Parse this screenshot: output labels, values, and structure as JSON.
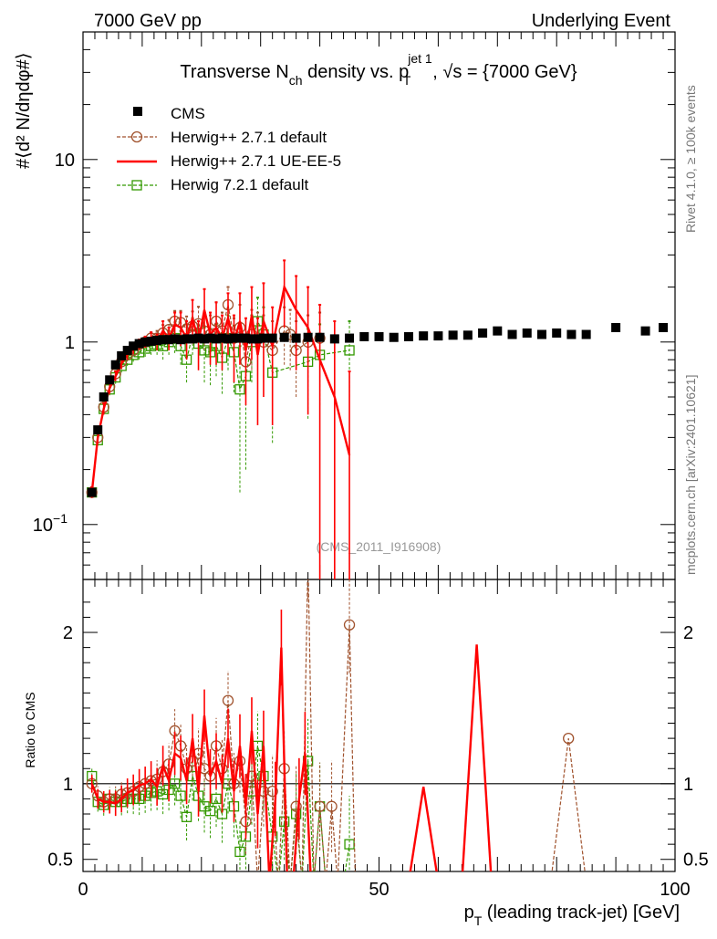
{
  "header": {
    "left": "7000 GeV pp",
    "right": "Underlying Event"
  },
  "side_labels": {
    "rivet": "Rivet 4.1.0, ≥ 100k events",
    "mcplots": "mcplots.cern.ch [arXiv:2401.10621]"
  },
  "analysis_label": "(CMS_2011_I916908)",
  "colors": {
    "cms": "#000000",
    "herwig271_default": "#a0522d",
    "herwig271_ueee5": "#ff0000",
    "herwig721": "#339900"
  },
  "chart_data": [
    {
      "type": "scatter",
      "panel": "main",
      "title": {
        "pre": "Transverse N",
        "sub1": "ch",
        "mid": " density vs. p",
        "sup2": "jet 1",
        "sub2": "T",
        "post": ", √s = {7000 GeV}"
      },
      "ylabel": "#⟨d² N/dηdφ#⟩",
      "yscale": "log",
      "ylim": [
        0.05,
        50
      ],
      "xlim": [
        0,
        100
      ],
      "yticks": [
        {
          "value": 0.1,
          "base": "10",
          "exp": "−1"
        },
        {
          "value": 1,
          "label": "1"
        },
        {
          "value": 10,
          "label": "10"
        }
      ],
      "series": [
        {
          "name": "CMS",
          "style": "marker-square-filled",
          "x": [
            1.5,
            2.5,
            3.5,
            4.5,
            5.5,
            6.5,
            7.5,
            8.5,
            9.5,
            10.5,
            11.5,
            12.5,
            13.5,
            14.5,
            15.5,
            16.5,
            17.5,
            18.5,
            19.5,
            20.5,
            21.5,
            22.5,
            23.5,
            24.5,
            25.5,
            26.5,
            27.5,
            28.5,
            29.5,
            30.5,
            32,
            34,
            36,
            38,
            40,
            42.5,
            45,
            47.5,
            50,
            52.5,
            55,
            57.5,
            60,
            62.5,
            65,
            67.5,
            70,
            72.5,
            75,
            77.5,
            80,
            82.5,
            85,
            90,
            95,
            98
          ],
          "y": [
            0.15,
            0.33,
            0.5,
            0.62,
            0.75,
            0.84,
            0.9,
            0.95,
            0.98,
            1.0,
            1.01,
            1.02,
            1.03,
            1.03,
            1.04,
            1.03,
            1.04,
            1.04,
            1.05,
            1.04,
            1.05,
            1.04,
            1.05,
            1.04,
            1.05,
            1.05,
            1.05,
            1.04,
            1.04,
            1.05,
            1.05,
            1.06,
            1.05,
            1.06,
            1.06,
            1.04,
            1.05,
            1.07,
            1.07,
            1.06,
            1.07,
            1.08,
            1.08,
            1.09,
            1.09,
            1.12,
            1.15,
            1.1,
            1.12,
            1.1,
            1.12,
            1.1,
            1.1,
            1.2,
            1.15,
            1.2
          ]
        },
        {
          "name": "Herwig++ 2.7.1 default",
          "style": "dashed-open-circle",
          "x": [
            1.5,
            2.5,
            3.5,
            4.5,
            5.5,
            6.5,
            7.5,
            8.5,
            9.5,
            10.5,
            11.5,
            12.5,
            13.5,
            14.5,
            15.5,
            16.5,
            17.5,
            18.5,
            19.5,
            20.5,
            21.5,
            22.5,
            23.5,
            24.5,
            25.5,
            26.5,
            27.5,
            28.5,
            29.5,
            30.5,
            32,
            34,
            35,
            36,
            38,
            40
          ],
          "y": [
            0.15,
            0.3,
            0.44,
            0.57,
            0.67,
            0.78,
            0.85,
            0.9,
            0.97,
            1.0,
            1.05,
            1.05,
            1.12,
            1.17,
            1.3,
            1.28,
            1.18,
            1.22,
            1.26,
            1.15,
            1.1,
            1.3,
            1.15,
            1.6,
            1.05,
            1.2,
            0.78,
            1.1,
            1.05,
            1.0,
            0.9,
            1.15,
            1.1,
            0.9,
            1.0,
            1.05
          ],
          "err": [
            0.01,
            0.02,
            0.03,
            0.04,
            0.04,
            0.05,
            0.05,
            0.06,
            0.06,
            0.07,
            0.08,
            0.1,
            0.12,
            0.15,
            0.18,
            0.2,
            0.2,
            0.25,
            0.3,
            0.25,
            0.3,
            0.35,
            0.3,
            0.4,
            0.3,
            0.4,
            0.3,
            0.4,
            0.4,
            0.4,
            0.4,
            0.4,
            0.4,
            0.4,
            0.4,
            0.4
          ]
        },
        {
          "name": "Herwig++ 2.7.1 UE-EE-5",
          "style": "solid",
          "x": [
            1.5,
            2.5,
            3.5,
            4.5,
            5.5,
            6.5,
            7.5,
            8.5,
            9.5,
            10.5,
            11.5,
            12.5,
            13.5,
            14.5,
            15.5,
            16.5,
            17.5,
            18.5,
            19.5,
            20.5,
            21.5,
            22.5,
            23.5,
            24.5,
            25.5,
            26.5,
            27.5,
            28.5,
            29.5,
            30.5,
            32,
            34,
            36,
            38,
            40,
            42.5,
            45
          ],
          "y": [
            0.15,
            0.3,
            0.43,
            0.56,
            0.65,
            0.76,
            0.85,
            0.92,
            0.97,
            1.0,
            1.05,
            1.0,
            1.15,
            1.05,
            1.25,
            1.2,
            1.05,
            1.35,
            1.0,
            1.5,
            1.1,
            1.2,
            1.05,
            1.35,
            1.0,
            1.3,
            0.9,
            1.4,
            0.85,
            1.3,
            0.95,
            2.0,
            1.5,
            1.2,
            0.8,
            0.5,
            0.24
          ],
          "err": [
            0.01,
            0.02,
            0.03,
            0.04,
            0.04,
            0.05,
            0.05,
            0.06,
            0.06,
            0.07,
            0.08,
            0.1,
            0.15,
            0.15,
            0.2,
            0.25,
            0.25,
            0.35,
            0.3,
            0.45,
            0.35,
            0.45,
            0.35,
            0.5,
            0.4,
            0.55,
            0.45,
            0.6,
            0.5,
            0.8,
            0.6,
            0.8,
            0.8,
            0.8,
            0.8,
            0.8,
            0.45
          ]
        },
        {
          "name": "Herwig 7.2.1 default",
          "style": "dashed-open-square",
          "x": [
            1.5,
            2.5,
            3.5,
            4.5,
            5.5,
            6.5,
            7.5,
            8.5,
            9.5,
            10.5,
            11.5,
            12.5,
            13.5,
            14.5,
            15.5,
            16.5,
            17.5,
            18.5,
            19.5,
            20.5,
            21.5,
            22.5,
            23.5,
            24.5,
            25.5,
            26.5,
            27.5,
            28.5,
            29.5,
            30.5,
            32,
            38,
            40,
            45
          ],
          "y": [
            0.15,
            0.29,
            0.43,
            0.55,
            0.64,
            0.74,
            0.8,
            0.85,
            0.88,
            0.92,
            0.95,
            0.97,
            0.95,
            1.0,
            1.05,
            0.95,
            0.8,
            1.1,
            0.98,
            0.9,
            0.88,
            0.95,
            0.82,
            1.05,
            0.88,
            0.55,
            0.65,
            1.0,
            1.3,
            1.1,
            0.68,
            0.78,
            0.85,
            0.9
          ],
          "err": [
            0.01,
            0.02,
            0.03,
            0.04,
            0.05,
            0.06,
            0.06,
            0.07,
            0.08,
            0.09,
            0.1,
            0.12,
            0.15,
            0.15,
            0.18,
            0.2,
            0.2,
            0.25,
            0.25,
            0.3,
            0.3,
            0.3,
            0.3,
            0.35,
            0.35,
            0.4,
            0.45,
            0.4,
            0.45,
            0.45,
            0.4,
            0.4,
            0.4,
            0.4
          ]
        }
      ]
    },
    {
      "type": "line",
      "panel": "ratio",
      "ylabel": "Ratio to CMS",
      "xlabel": {
        "pre": "p",
        "sub": "T",
        "post": " (leading track-jet) [GeV]"
      },
      "xlim": [
        0,
        100
      ],
      "ylim": [
        0.42,
        2.35
      ],
      "xticks": [
        0,
        50,
        100
      ],
      "yticks": [
        0.5,
        1,
        2
      ],
      "reference": 1,
      "series": [
        {
          "name": "Herwig++ 2.7.1 default",
          "x": [
            1.5,
            2.5,
            3.5,
            4.5,
            5.5,
            6.5,
            7.5,
            8.5,
            9.5,
            10.5,
            11.5,
            12.5,
            13.5,
            14.5,
            15.5,
            16.5,
            17.5,
            18.5,
            19.5,
            20.5,
            21.5,
            22.5,
            23.5,
            24.5,
            25.5,
            26.5,
            27.5,
            28.5,
            29.5,
            30.5,
            32,
            33,
            34,
            35,
            36,
            37,
            38,
            39,
            40,
            41,
            42,
            43,
            45,
            46,
            48,
            79,
            82,
            85
          ],
          "y": [
            1.0,
            0.92,
            0.88,
            0.9,
            0.9,
            0.93,
            0.94,
            0.95,
            0.98,
            1.0,
            1.02,
            1.03,
            1.08,
            1.13,
            1.35,
            1.25,
            1.1,
            1.15,
            1.2,
            1.1,
            1.05,
            1.25,
            1.1,
            1.55,
            1.0,
            1.15,
            0.75,
            1.05,
            0.35,
            0.95,
            0.95,
            0.35,
            1.1,
            0.35,
            0.85,
            0.35,
            2.5,
            0.35,
            0.85,
            0.35,
            0.85,
            0.35,
            2.05,
            0.35,
            0.35,
            0.35,
            1.3,
            0.35
          ]
        },
        {
          "name": "Herwig++ 2.7.1 UE-EE-5",
          "x": [
            1.5,
            2.5,
            3.5,
            4.5,
            5.5,
            6.5,
            7.5,
            8.5,
            9.5,
            10.5,
            11.5,
            12.5,
            13.5,
            14.5,
            15.5,
            16.5,
            17.5,
            18.5,
            19.5,
            20.5,
            21.5,
            22.5,
            23.5,
            24.5,
            25.5,
            26.5,
            27.5,
            28.5,
            29.5,
            30.5,
            31.5,
            32.5,
            33.5,
            34.5,
            35.5,
            36.5,
            37.5,
            38.5,
            39.5,
            40.5,
            55,
            57.5,
            60,
            64,
            66.5,
            69
          ],
          "y": [
            1.0,
            0.9,
            0.88,
            0.88,
            0.87,
            0.9,
            0.94,
            0.96,
            0.99,
            1.0,
            1.03,
            0.98,
            1.12,
            1.02,
            1.2,
            1.17,
            1.02,
            1.3,
            0.95,
            1.45,
            1.05,
            1.15,
            1.0,
            1.3,
            0.95,
            1.25,
            0.85,
            1.35,
            0.8,
            1.25,
            0.35,
            0.9,
            1.9,
            0.35,
            0.35,
            0.9,
            1.2,
            0.35,
            0.35,
            0.35,
            0.35,
            0.98,
            0.35,
            0.35,
            1.92,
            0.35
          ]
        },
        {
          "name": "Herwig 7.2.1 default",
          "x": [
            1.5,
            2.5,
            3.5,
            4.5,
            5.5,
            6.5,
            7.5,
            8.5,
            9.5,
            10.5,
            11.5,
            12.5,
            13.5,
            14.5,
            15.5,
            16.5,
            17.5,
            18.5,
            19.5,
            20.5,
            21.5,
            22.5,
            23.5,
            24.5,
            25.5,
            26.5,
            27.5,
            28.5,
            29.5,
            30.5,
            32,
            33,
            34,
            35,
            36,
            37,
            38,
            39,
            40,
            41,
            42,
            43,
            44,
            45
          ],
          "y": [
            1.05,
            0.88,
            0.86,
            0.9,
            0.88,
            0.88,
            0.9,
            0.9,
            0.9,
            0.92,
            0.94,
            0.95,
            0.93,
            0.96,
            1.0,
            0.92,
            0.78,
            1.05,
            0.92,
            0.85,
            0.82,
            0.9,
            0.8,
            1.0,
            0.85,
            0.55,
            0.65,
            0.95,
            1.25,
            1.05,
            0.65,
            0.35,
            0.75,
            0.35,
            0.8,
            0.35,
            1.15,
            0.35,
            0.85,
            0.35,
            0.35,
            0.35,
            0.35,
            0.6
          ]
        }
      ]
    }
  ]
}
